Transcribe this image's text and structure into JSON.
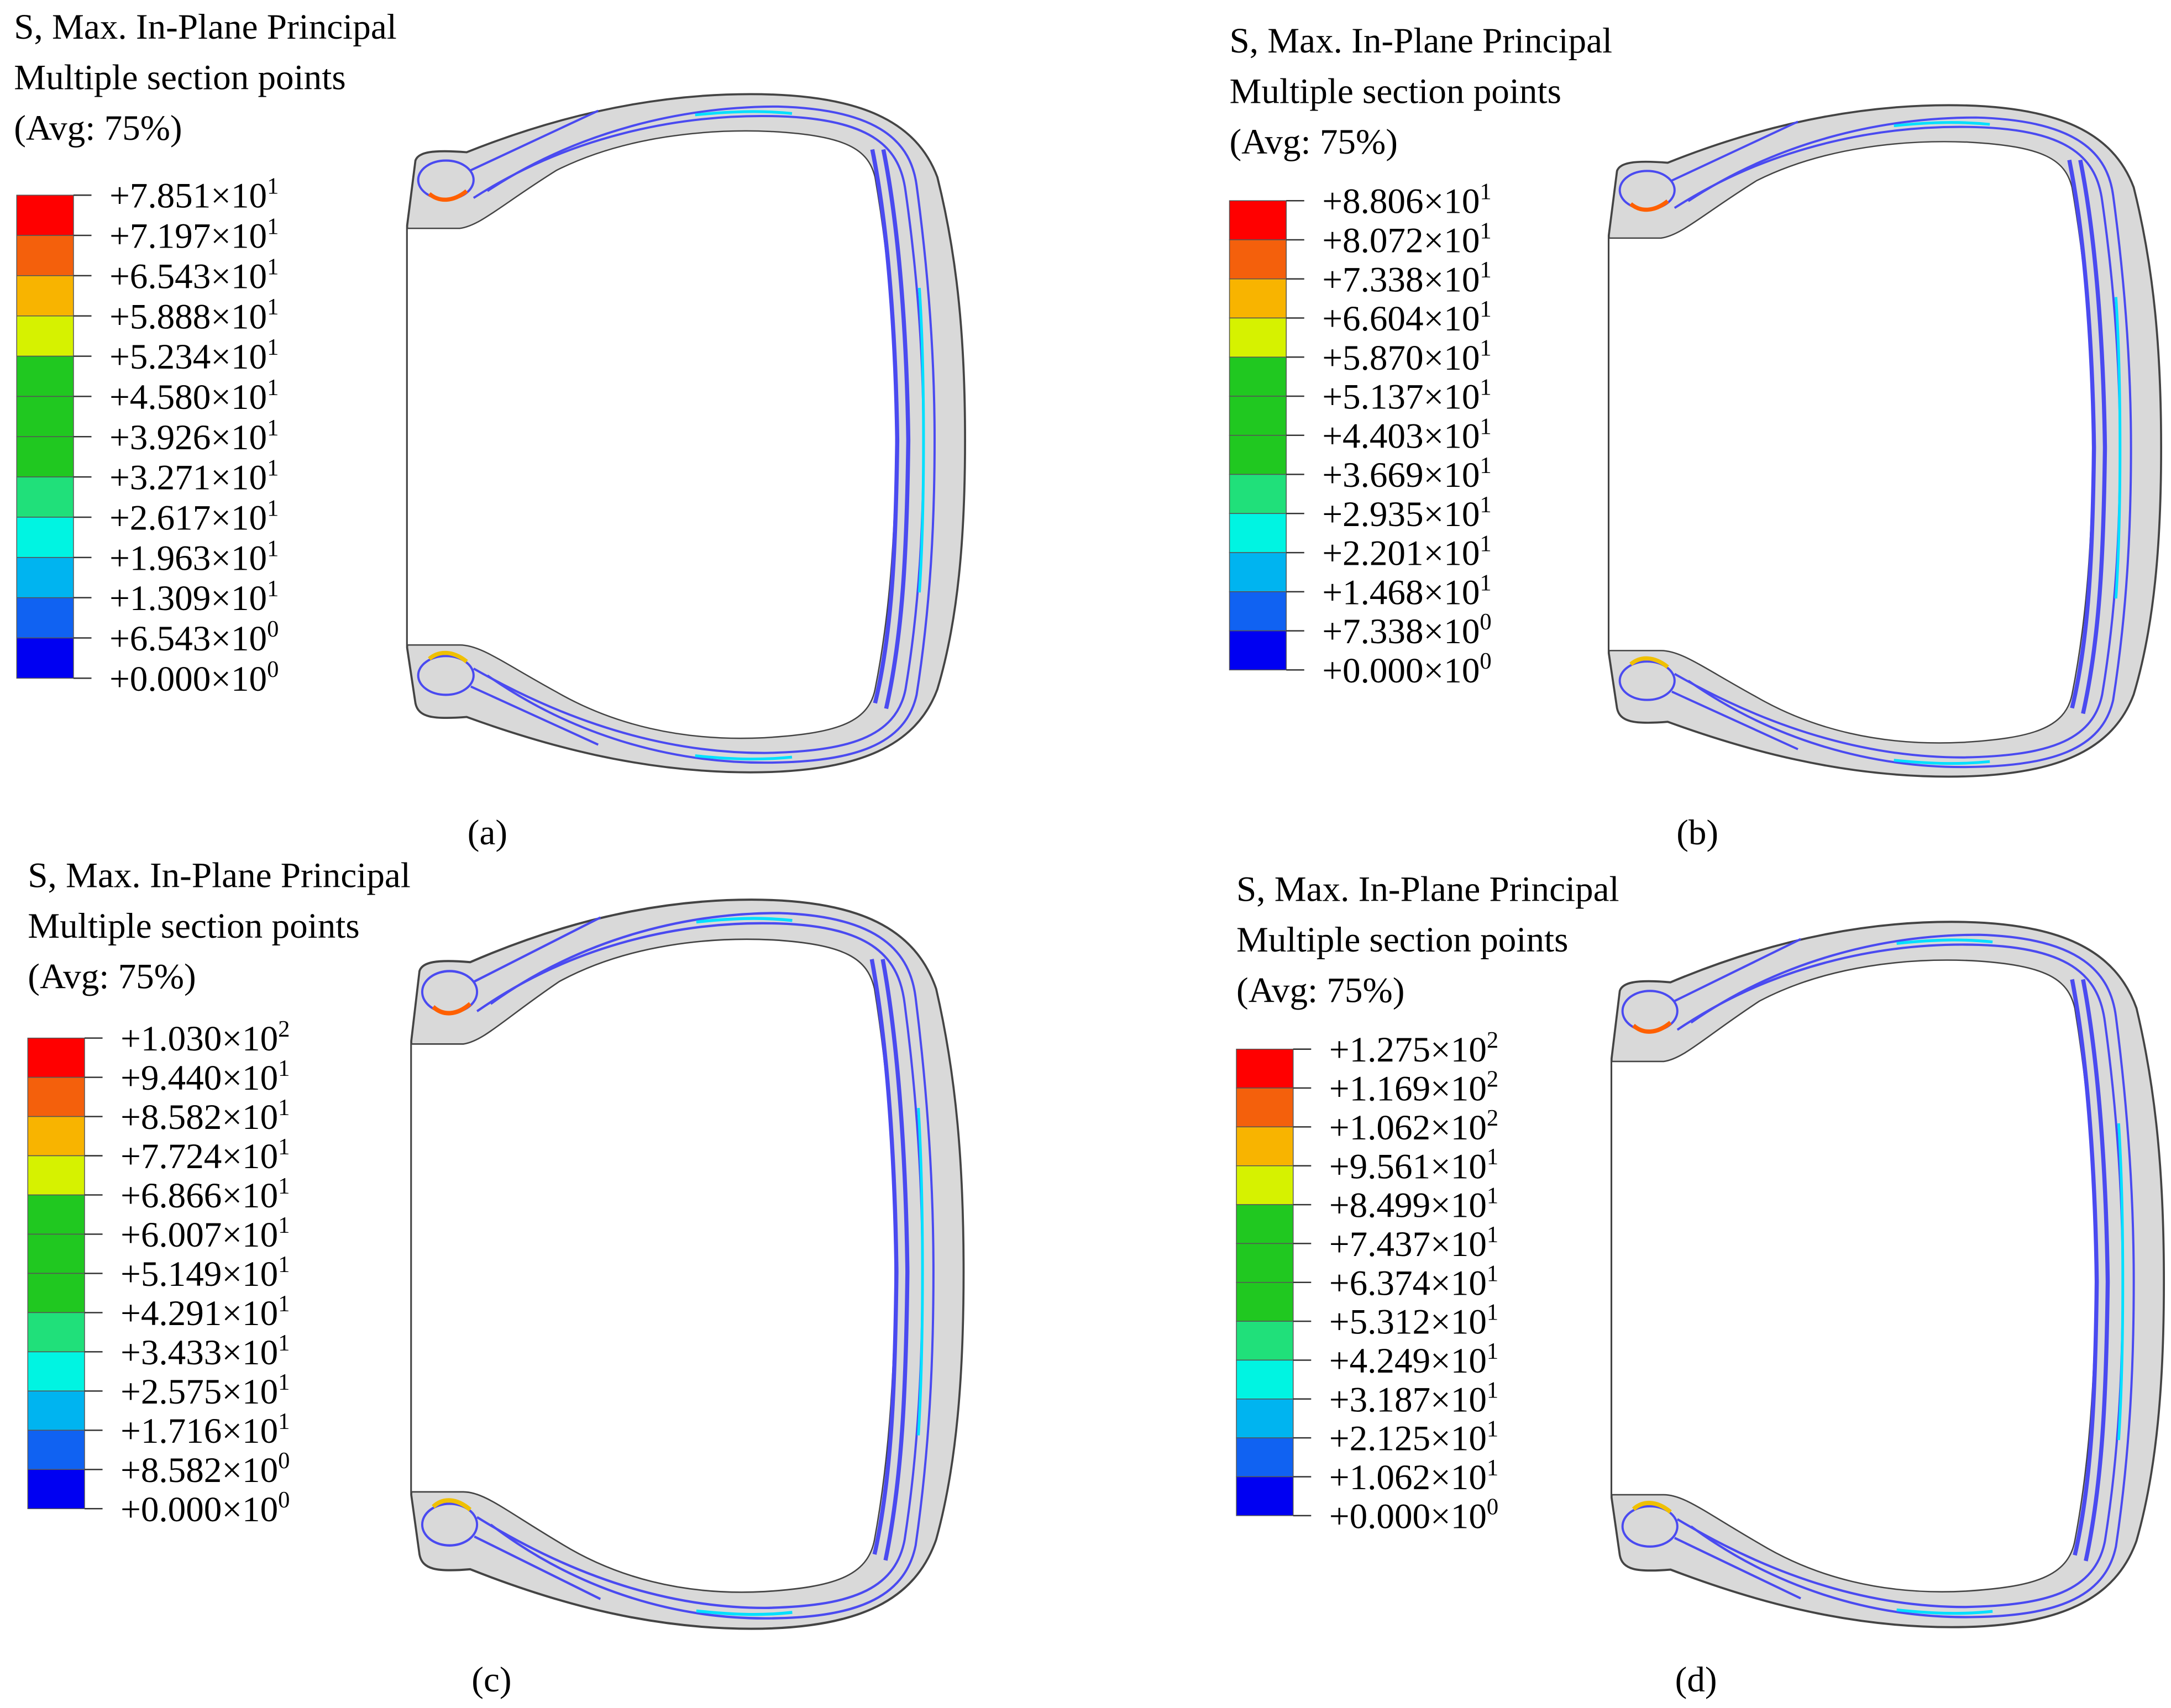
{
  "colors": [
    "#ff0000",
    "#f4600c",
    "#f8b400",
    "#d6f200",
    "#20c820",
    "#20c820",
    "#20c820",
    "#20e07a",
    "#00f4e2",
    "#00b4f0",
    "#1062f2",
    "#0000f2"
  ],
  "panels": [
    {
      "title_lines": [
        "S, Max. In-Plane Principal",
        "Multiple section points",
        "(Avg: 75%)"
      ],
      "labels": [
        {
          "base": "+7.851×10",
          "exp": "1"
        },
        {
          "base": "+7.197×10",
          "exp": "1"
        },
        {
          "base": "+6.543×10",
          "exp": "1"
        },
        {
          "base": "+5.888×10",
          "exp": "1"
        },
        {
          "base": "+5.234×10",
          "exp": "1"
        },
        {
          "base": "+4.580×10",
          "exp": "1"
        },
        {
          "base": "+3.926×10",
          "exp": "1"
        },
        {
          "base": "+3.271×10",
          "exp": "1"
        },
        {
          "base": "+2.617×10",
          "exp": "1"
        },
        {
          "base": "+1.963×10",
          "exp": "1"
        },
        {
          "base": "+1.309×10",
          "exp": "1"
        },
        {
          "base": "+6.543×10",
          "exp": "0"
        },
        {
          "base": "+0.000×10",
          "exp": "0"
        }
      ],
      "caption": "(a)"
    },
    {
      "title_lines": [
        "S, Max. In-Plane Principal",
        "Multiple section points",
        "(Avg: 75%)"
      ],
      "labels": [
        {
          "base": "+8.806×10",
          "exp": "1"
        },
        {
          "base": "+8.072×10",
          "exp": "1"
        },
        {
          "base": "+7.338×10",
          "exp": "1"
        },
        {
          "base": "+6.604×10",
          "exp": "1"
        },
        {
          "base": "+5.870×10",
          "exp": "1"
        },
        {
          "base": "+5.137×10",
          "exp": "1"
        },
        {
          "base": "+4.403×10",
          "exp": "1"
        },
        {
          "base": "+3.669×10",
          "exp": "1"
        },
        {
          "base": "+2.935×10",
          "exp": "1"
        },
        {
          "base": "+2.201×10",
          "exp": "1"
        },
        {
          "base": "+1.468×10",
          "exp": "1"
        },
        {
          "base": "+7.338×10",
          "exp": "0"
        },
        {
          "base": "+0.000×10",
          "exp": "0"
        }
      ],
      "caption": "(b)"
    },
    {
      "title_lines": [
        "S, Max. In-Plane Principal",
        "Multiple section points",
        "(Avg: 75%)"
      ],
      "labels": [
        {
          "base": "+1.030×10",
          "exp": "2"
        },
        {
          "base": "+9.440×10",
          "exp": "1"
        },
        {
          "base": "+8.582×10",
          "exp": "1"
        },
        {
          "base": "+7.724×10",
          "exp": "1"
        },
        {
          "base": "+6.866×10",
          "exp": "1"
        },
        {
          "base": "+6.007×10",
          "exp": "1"
        },
        {
          "base": "+5.149×10",
          "exp": "1"
        },
        {
          "base": "+4.291×10",
          "exp": "1"
        },
        {
          "base": "+3.433×10",
          "exp": "1"
        },
        {
          "base": "+2.575×10",
          "exp": "1"
        },
        {
          "base": "+1.716×10",
          "exp": "1"
        },
        {
          "base": "+8.582×10",
          "exp": "0"
        },
        {
          "base": "+0.000×10",
          "exp": "0"
        }
      ],
      "caption": "(c)"
    },
    {
      "title_lines": [
        "S, Max. In-Plane Principal",
        "Multiple section points",
        "(Avg: 75%)"
      ],
      "labels": [
        {
          "base": "+1.275×10",
          "exp": "2"
        },
        {
          "base": "+1.169×10",
          "exp": "2"
        },
        {
          "base": "+1.062×10",
          "exp": "2"
        },
        {
          "base": "+9.561×10",
          "exp": "1"
        },
        {
          "base": "+8.499×10",
          "exp": "1"
        },
        {
          "base": "+7.437×10",
          "exp": "1"
        },
        {
          "base": "+6.374×10",
          "exp": "1"
        },
        {
          "base": "+5.312×10",
          "exp": "1"
        },
        {
          "base": "+4.249×10",
          "exp": "1"
        },
        {
          "base": "+3.187×10",
          "exp": "1"
        },
        {
          "base": "+2.125×10",
          "exp": "1"
        },
        {
          "base": "+1.062×10",
          "exp": "1"
        },
        {
          "base": "+0.000×10",
          "exp": "0"
        }
      ],
      "caption": "(d)"
    }
  ]
}
